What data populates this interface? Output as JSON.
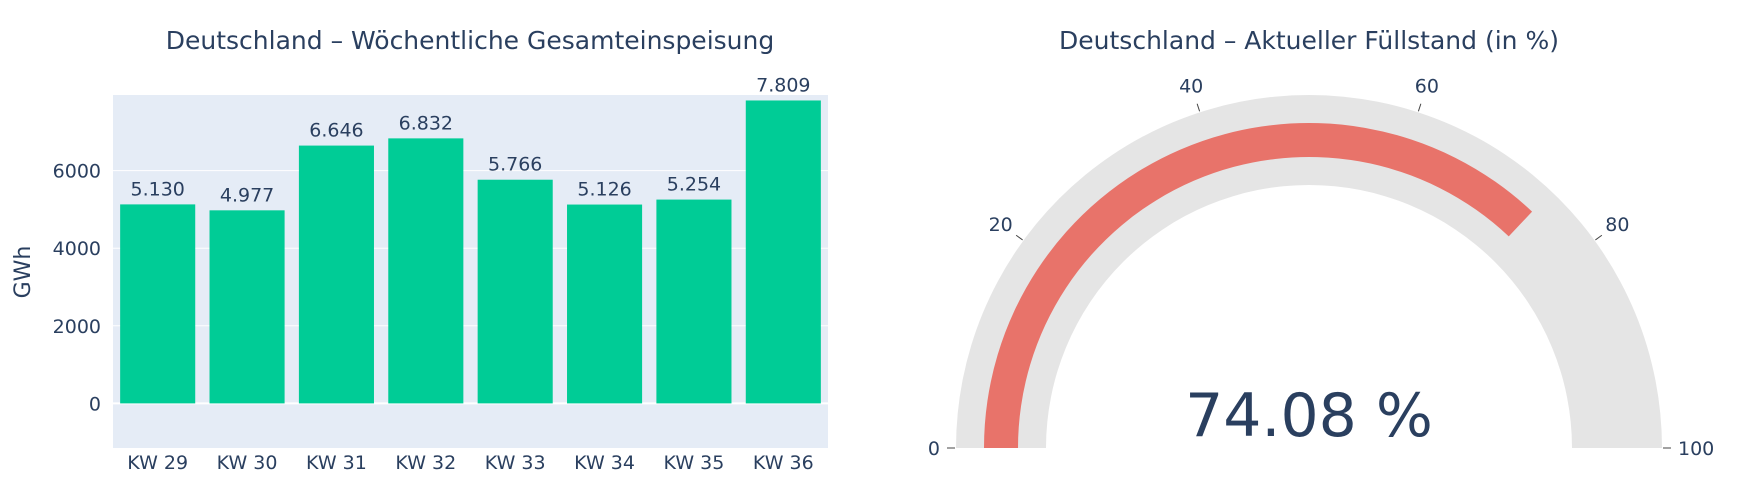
{
  "chart_data": [
    {
      "type": "bar",
      "title": "Deutschland – Wöchentliche Gesamteinspeisung",
      "ylabel": "GWh",
      "xlabel": "",
      "categories": [
        "KW 29",
        "KW 30",
        "KW 31",
        "KW 32",
        "KW 33",
        "KW 34",
        "KW 35",
        "KW 36"
      ],
      "values": [
        5130,
        4977,
        6646,
        6832,
        5766,
        5126,
        5254,
        7809
      ],
      "value_labels": [
        "5.130",
        "4.977",
        "6.646",
        "6.832",
        "5.766",
        "5.126",
        "5.254",
        "7.809"
      ],
      "ylim": [
        -1150,
        7950
      ],
      "yticks": [
        0,
        2000,
        4000,
        6000
      ],
      "ytick_labels": [
        "0",
        "2000",
        "4000",
        "6000"
      ],
      "grid": true,
      "colors": {
        "bar": "#00cc96",
        "plot_bg": "#e5ecf6",
        "grid": "#ffffff",
        "text": "#2a3f5f"
      }
    },
    {
      "type": "gauge",
      "title": "Deutschland – Aktueller Füllstand (in %)",
      "value": 74.08,
      "value_label": "74.08 %",
      "range": [
        0,
        100
      ],
      "ticks": [
        0,
        20,
        40,
        60,
        80,
        100
      ],
      "tick_labels": [
        "0",
        "20",
        "40",
        "60",
        "80",
        "100"
      ],
      "colors": {
        "track": "#e5e5e5",
        "bar": "#e8736a",
        "text": "#2a3f5f"
      }
    }
  ]
}
